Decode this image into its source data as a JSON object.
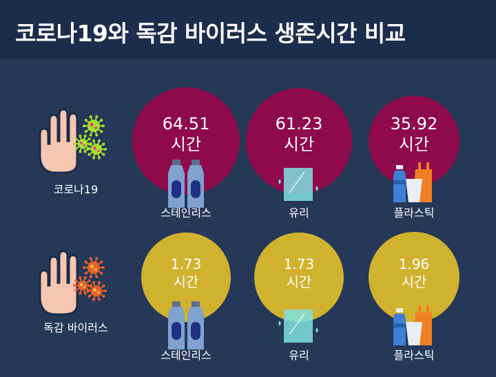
{
  "title": "코로나19와 독감 바이러스 생존시간 비교",
  "colors": {
    "background": "#253858",
    "header": "#1c2c4b",
    "covid_circle": "#8e0a4b",
    "flu_circle": "#d1b22f",
    "text": "#ffffff"
  },
  "chart_data": {
    "type": "bubble",
    "categories": [
      "스테인리스",
      "유리",
      "플라스틱"
    ],
    "unit": "시간",
    "series": [
      {
        "name": "코로나19",
        "icon": "hand-with-green-virus-icon",
        "values": [
          64.51,
          61.23,
          35.92
        ]
      },
      {
        "name": "독감 바이러스",
        "icon": "hand-with-red-virus-icon",
        "values": [
          1.73,
          1.73,
          1.96
        ]
      }
    ],
    "material_icons": [
      "stainless-bottles-icon",
      "glass-pane-icon",
      "plastic-items-icon"
    ]
  }
}
